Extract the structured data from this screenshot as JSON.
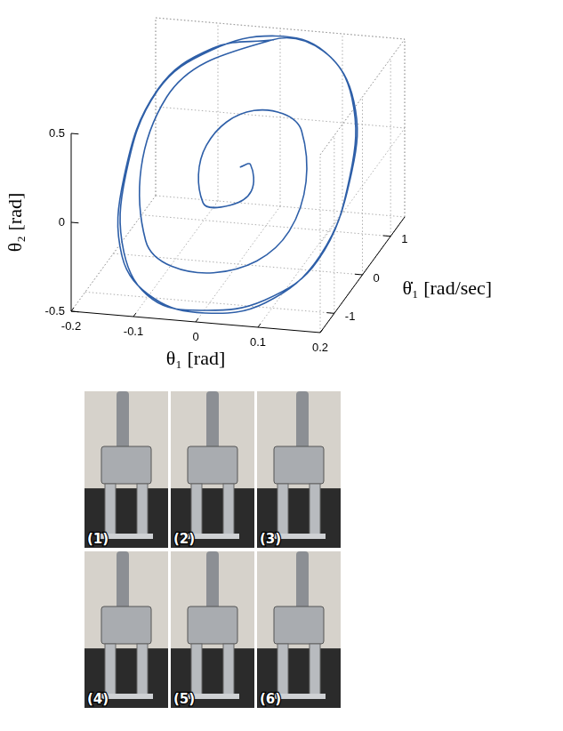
{
  "chart_data": {
    "type": "line3d",
    "xlabel": "θ₁ [rad]",
    "ylabel": "θ̇₁ [rad/sec]",
    "zlabel": "θ₂ [rad]",
    "xlim": [
      -0.2,
      0.2
    ],
    "ylim": [
      -1.5,
      1.5
    ],
    "zlim": [
      -0.5,
      0.5
    ],
    "xticks": [
      -0.2,
      -0.1,
      0,
      0.1,
      0.2
    ],
    "yticks": [
      -1,
      0,
      1
    ],
    "zticks": [
      -0.5,
      0,
      0.5
    ],
    "grid": true,
    "color": "#2e5fa8",
    "x": [
      0,
      0.017,
      0.026,
      0,
      -0.048,
      -0.061,
      0,
      0.087,
      0.1,
      0,
      -0.126,
      -0.139,
      0,
      0.09,
      0.156,
      0.18,
      0.156,
      0.09,
      0,
      -0.09,
      -0.156,
      -0.18,
      -0.156,
      -0.09,
      0.005,
      0.092,
      0.158,
      0.182,
      0.158,
      0.092,
      0.002,
      -0.088,
      -0.158,
      -0.182,
      -0.155,
      -0.088,
      0.003
    ],
    "y": [
      0.07,
      0.07,
      -0.1,
      -0.27,
      -0.18,
      0.23,
      0.57,
      0.34,
      -0.39,
      -0.87,
      -0.49,
      0.54,
      1.2,
      1.04,
      0.6,
      0,
      -0.6,
      -1.04,
      -1.2,
      -1.04,
      -0.6,
      0,
      0.6,
      1.04,
      1.22,
      1.06,
      0.62,
      0.02,
      -0.58,
      -1.06,
      -1.22,
      -1.05,
      -0.62,
      -0.02,
      0.58,
      1.05,
      1.21
    ],
    "z": [
      0.03,
      0.05,
      -0.06,
      -0.11,
      -0.13,
      0.1,
      0.24,
      0.2,
      -0.2,
      -0.36,
      -0.3,
      0.28,
      0.5,
      0.5,
      0.35,
      0.05,
      -0.3,
      -0.45,
      -0.5,
      -0.5,
      -0.35,
      -0.05,
      0.3,
      0.45,
      0.52,
      0.49,
      0.33,
      0.07,
      -0.28,
      -0.46,
      -0.51,
      -0.49,
      -0.37,
      -0.06,
      0.31,
      0.46,
      0.5
    ]
  },
  "photos": {
    "labels": [
      "(1)",
      "(2)",
      "(3)",
      "(4)",
      "(5)",
      "(6)"
    ]
  }
}
